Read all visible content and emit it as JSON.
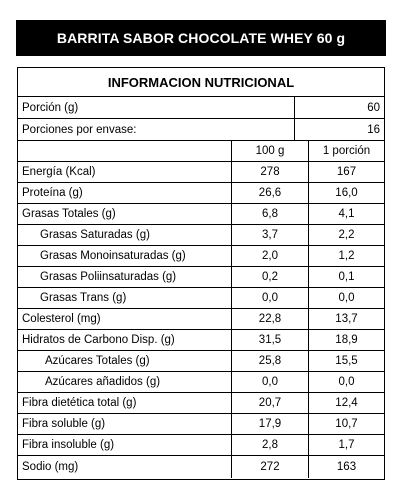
{
  "title": "BARRITA SABOR CHOCOLATE WHEY 60 g",
  "table": {
    "header": "INFORMACION NUTRICIONAL",
    "portion_label": "Porción (g)",
    "portion_value": "60",
    "servings_label": "Porciones por envase:",
    "servings_value": "16",
    "col_100": "100 g",
    "col_portion": "1 porción",
    "rows": [
      {
        "label": "Energía (Kcal)",
        "v100": "278",
        "vpor": "167"
      },
      {
        "label": "Proteína (g)",
        "v100": "26,6",
        "vpor": "16,0"
      },
      {
        "label": "Grasas Totales (g)",
        "v100": "6,8",
        "vpor": "4,1"
      },
      {
        "label": "Grasas Saturadas (g)",
        "v100": "3,7",
        "vpor": "2,2"
      },
      {
        "label": "Grasas Monoinsaturadas (g)",
        "v100": "2,0",
        "vpor": "1,2"
      },
      {
        "label": "Grasas Poliinsaturadas (g)",
        "v100": "0,2",
        "vpor": "0,1"
      },
      {
        "label": "Grasas Trans (g)",
        "v100": "0,0",
        "vpor": "0,0"
      },
      {
        "label": "Colesterol (mg)",
        "v100": "22,8",
        "vpor": "13,7"
      },
      {
        "label": "Hidratos de Carbono Disp. (g)",
        "v100": "31,5",
        "vpor": "18,9"
      },
      {
        "label": "Azúcares Totales (g)",
        "v100": "25,8",
        "vpor": "15,5"
      },
      {
        "label": "Azúcares añadidos (g)",
        "v100": "0,0",
        "vpor": "0,0"
      },
      {
        "label": "Fibra dietética total (g)",
        "v100": "20,7",
        "vpor": "12,4"
      },
      {
        "label": "Fibra soluble (g)",
        "v100": "17,9",
        "vpor": "10,7"
      },
      {
        "label": "Fibra insoluble (g)",
        "v100": "2,8",
        "vpor": "1,7"
      },
      {
        "label": "Sodio (mg)",
        "v100": "272",
        "vpor": "163"
      }
    ]
  }
}
